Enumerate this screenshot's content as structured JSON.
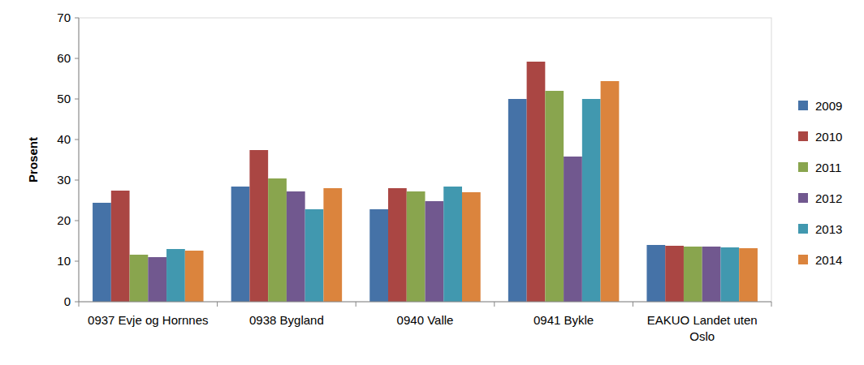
{
  "chart_data": {
    "type": "bar",
    "y_label": "Prosent",
    "categories": [
      "0937 Evje og Hornnes",
      "0938 Bygland",
      "0940 Valle",
      "0941 Bykle",
      "EAKUO Landet uten Oslo"
    ],
    "series": [
      {
        "name": "2009",
        "color": "#4572a7",
        "values": [
          24.4,
          28.4,
          22.8,
          50,
          14
        ]
      },
      {
        "name": "2010",
        "color": "#aa4643",
        "values": [
          27.4,
          37.4,
          28,
          59.2,
          13.8
        ]
      },
      {
        "name": "2011",
        "color": "#89a54e",
        "values": [
          11.6,
          30.4,
          27.2,
          52,
          13.6
        ]
      },
      {
        "name": "2012",
        "color": "#71588f",
        "values": [
          11,
          27.2,
          24.8,
          35.8,
          13.6
        ]
      },
      {
        "name": "2013",
        "color": "#4198af",
        "values": [
          13,
          22.8,
          28.4,
          50,
          13.4
        ]
      },
      {
        "name": "2014",
        "color": "#db843d",
        "values": [
          12.6,
          28,
          27,
          54.4,
          13.2
        ]
      }
    ],
    "ylim": [
      0,
      70
    ],
    "yticks": [
      0,
      10,
      20,
      30,
      40,
      50,
      60,
      70
    ],
    "grid": false,
    "legend": "right"
  }
}
